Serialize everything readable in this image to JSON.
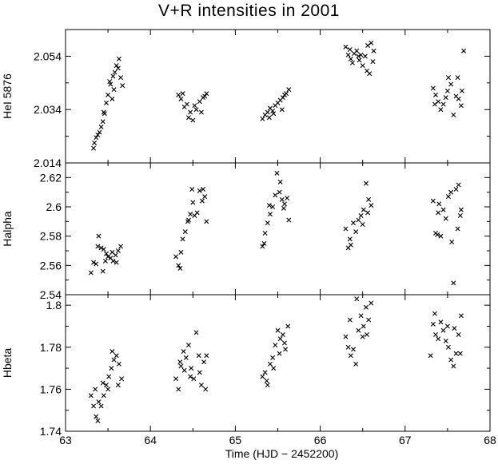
{
  "chart_data": {
    "type": "scatter",
    "title": "V+R intensities in 2001",
    "xlabel": "Time (HJD − 2452200)",
    "xlim": [
      63,
      68
    ],
    "xticks": [
      "63",
      "64",
      "65",
      "66",
      "67",
      "68"
    ],
    "marker": "x",
    "grid": false,
    "panels": [
      {
        "name": "HeI 5876",
        "ylabel": "HeI 5876",
        "ylim": [
          2.014,
          2.064
        ],
        "yticks": [
          "2.014",
          "2.034",
          "2.054"
        ],
        "points": [
          [
            63.33,
            2.0195
          ],
          [
            63.34,
            2.0215
          ],
          [
            63.36,
            2.0235
          ],
          [
            63.38,
            2.0245
          ],
          [
            63.4,
            2.0255
          ],
          [
            63.42,
            2.0275
          ],
          [
            63.44,
            2.0295
          ],
          [
            63.46,
            2.0325
          ],
          [
            63.48,
            2.0365
          ],
          [
            63.5,
            2.0395
          ],
          [
            63.53,
            2.0435
          ],
          [
            63.56,
            2.0465
          ],
          [
            63.58,
            2.048
          ],
          [
            63.62,
            2.0495
          ],
          [
            63.65,
            2.046
          ],
          [
            63.52,
            2.0445
          ],
          [
            63.57,
            2.0415
          ],
          [
            63.6,
            2.0505
          ],
          [
            63.63,
            2.053
          ],
          [
            63.67,
            2.043
          ],
          [
            63.55,
            2.038
          ],
          [
            63.45,
            2.033
          ],
          [
            64.33,
            2.0395
          ],
          [
            64.36,
            2.038
          ],
          [
            64.4,
            2.035
          ],
          [
            64.43,
            2.036
          ],
          [
            64.47,
            2.033
          ],
          [
            64.5,
            2.03
          ],
          [
            64.54,
            2.034
          ],
          [
            64.58,
            2.037
          ],
          [
            64.62,
            2.0385
          ],
          [
            64.66,
            2.04
          ],
          [
            64.38,
            2.04
          ],
          [
            64.45,
            2.031
          ],
          [
            64.52,
            2.0355
          ],
          [
            64.6,
            2.033
          ],
          [
            64.64,
            2.039
          ],
          [
            65.32,
            2.0305
          ],
          [
            65.35,
            2.032
          ],
          [
            65.38,
            2.033
          ],
          [
            65.41,
            2.0345
          ],
          [
            65.44,
            2.0335
          ],
          [
            65.47,
            2.0355
          ],
          [
            65.5,
            2.0365
          ],
          [
            65.53,
            2.0375
          ],
          [
            65.56,
            2.0385
          ],
          [
            65.6,
            2.04
          ],
          [
            65.63,
            2.0415
          ],
          [
            65.45,
            2.0325
          ],
          [
            65.55,
            2.034
          ],
          [
            65.4,
            2.031
          ],
          [
            65.58,
            2.0395
          ],
          [
            66.3,
            2.0575
          ],
          [
            66.33,
            2.0545
          ],
          [
            66.36,
            2.053
          ],
          [
            66.4,
            2.055
          ],
          [
            66.43,
            2.056
          ],
          [
            66.46,
            2.0525
          ],
          [
            66.5,
            2.0505
          ],
          [
            66.53,
            2.054
          ],
          [
            66.56,
            2.058
          ],
          [
            66.6,
            2.059
          ],
          [
            66.63,
            2.056
          ],
          [
            66.38,
            2.0515
          ],
          [
            66.48,
            2.0545
          ],
          [
            66.55,
            2.0485
          ],
          [
            66.58,
            2.0475
          ],
          [
            66.62,
            2.052
          ],
          [
            66.35,
            2.0565
          ],
          [
            66.45,
            2.054
          ],
          [
            67.33,
            2.042
          ],
          [
            67.36,
            2.0395
          ],
          [
            67.39,
            2.037
          ],
          [
            67.42,
            2.034
          ],
          [
            67.45,
            2.036
          ],
          [
            67.48,
            2.0385
          ],
          [
            67.51,
            2.046
          ],
          [
            67.54,
            2.0435
          ],
          [
            67.57,
            2.032
          ],
          [
            67.6,
            2.039
          ],
          [
            67.63,
            2.038
          ],
          [
            67.66,
            2.0355
          ],
          [
            67.69,
            2.056
          ],
          [
            67.35,
            2.036
          ],
          [
            67.5,
            2.041
          ],
          [
            67.62,
            2.046
          ],
          [
            67.67,
            2.041
          ]
        ]
      },
      {
        "name": "Halpha",
        "ylabel": "Halpha",
        "ylim": [
          2.54,
          2.63
        ],
        "yticks": [
          "2.54",
          "2.56",
          "2.58",
          "2.6",
          "2.62"
        ],
        "points": [
          [
            63.3,
            2.555
          ],
          [
            63.33,
            2.562
          ],
          [
            63.36,
            2.561
          ],
          [
            63.39,
            2.58
          ],
          [
            63.42,
            2.572
          ],
          [
            63.45,
            2.571
          ],
          [
            63.48,
            2.568
          ],
          [
            63.5,
            2.566
          ],
          [
            63.53,
            2.565
          ],
          [
            63.56,
            2.563
          ],
          [
            63.59,
            2.567
          ],
          [
            63.62,
            2.57
          ],
          [
            63.65,
            2.573
          ],
          [
            63.44,
            2.556
          ],
          [
            63.47,
            2.563
          ],
          [
            63.6,
            2.562
          ],
          [
            63.38,
            2.573
          ],
          [
            63.55,
            2.569
          ],
          [
            64.3,
            2.566
          ],
          [
            64.33,
            2.56
          ],
          [
            64.36,
            2.569
          ],
          [
            64.38,
            2.578
          ],
          [
            64.41,
            2.583
          ],
          [
            64.44,
            2.59
          ],
          [
            64.47,
            2.595
          ],
          [
            64.49,
            2.612
          ],
          [
            64.52,
            2.594
          ],
          [
            64.55,
            2.596
          ],
          [
            64.58,
            2.611
          ],
          [
            64.61,
            2.604
          ],
          [
            64.64,
            2.607
          ],
          [
            64.66,
            2.59
          ],
          [
            64.35,
            2.558
          ],
          [
            64.5,
            2.603
          ],
          [
            64.62,
            2.612
          ],
          [
            64.45,
            2.591
          ],
          [
            65.32,
            2.573
          ],
          [
            65.35,
            2.582
          ],
          [
            65.38,
            2.589
          ],
          [
            65.41,
            2.595
          ],
          [
            65.44,
            2.6
          ],
          [
            65.47,
            2.608
          ],
          [
            65.49,
            2.623
          ],
          [
            65.52,
            2.61
          ],
          [
            65.55,
            2.605
          ],
          [
            65.58,
            2.602
          ],
          [
            65.61,
            2.606
          ],
          [
            65.63,
            2.591
          ],
          [
            65.4,
            2.601
          ],
          [
            65.53,
            2.617
          ],
          [
            65.57,
            2.599
          ],
          [
            65.34,
            2.575
          ],
          [
            66.3,
            2.585
          ],
          [
            66.33,
            2.572
          ],
          [
            66.36,
            2.574
          ],
          [
            66.39,
            2.589
          ],
          [
            66.42,
            2.583
          ],
          [
            66.45,
            2.591
          ],
          [
            66.48,
            2.594
          ],
          [
            66.51,
            2.598
          ],
          [
            66.54,
            2.616
          ],
          [
            66.57,
            2.605
          ],
          [
            66.6,
            2.601
          ],
          [
            66.35,
            2.578
          ],
          [
            66.5,
            2.588
          ],
          [
            66.56,
            2.596
          ],
          [
            67.33,
            2.604
          ],
          [
            67.36,
            2.582
          ],
          [
            67.39,
            2.596
          ],
          [
            67.42,
            2.58
          ],
          [
            67.45,
            2.598
          ],
          [
            67.48,
            2.592
          ],
          [
            67.51,
            2.607
          ],
          [
            67.54,
            2.61
          ],
          [
            67.57,
            2.548
          ],
          [
            67.6,
            2.612
          ],
          [
            67.63,
            2.615
          ],
          [
            67.66,
            2.598
          ],
          [
            67.38,
            2.581
          ],
          [
            67.55,
            2.576
          ],
          [
            67.62,
            2.585
          ],
          [
            67.65,
            2.594
          ],
          [
            67.4,
            2.602
          ]
        ]
      },
      {
        "name": "Hbeta",
        "ylabel": "Hbeta",
        "ylim": [
          1.74,
          1.805
        ],
        "yticks": [
          "1.74",
          "1.76",
          "1.78",
          "1.8"
        ],
        "points": [
          [
            63.3,
            1.757
          ],
          [
            63.33,
            1.752
          ],
          [
            63.36,
            1.747
          ],
          [
            63.39,
            1.754
          ],
          [
            63.42,
            1.752
          ],
          [
            63.45,
            1.757
          ],
          [
            63.48,
            1.762
          ],
          [
            63.51,
            1.766
          ],
          [
            63.54,
            1.77
          ],
          [
            63.57,
            1.774
          ],
          [
            63.6,
            1.776
          ],
          [
            63.63,
            1.772
          ],
          [
            63.66,
            1.765
          ],
          [
            63.35,
            1.76
          ],
          [
            63.44,
            1.763
          ],
          [
            63.55,
            1.778
          ],
          [
            63.62,
            1.762
          ],
          [
            63.38,
            1.745
          ],
          [
            63.5,
            1.76
          ],
          [
            64.3,
            1.765
          ],
          [
            64.33,
            1.76
          ],
          [
            64.36,
            1.771
          ],
          [
            64.39,
            1.778
          ],
          [
            64.42,
            1.775
          ],
          [
            64.45,
            1.781
          ],
          [
            64.48,
            1.77
          ],
          [
            64.51,
            1.765
          ],
          [
            64.54,
            1.787
          ],
          [
            64.57,
            1.776
          ],
          [
            64.6,
            1.762
          ],
          [
            64.63,
            1.773
          ],
          [
            64.66,
            1.776
          ],
          [
            64.35,
            1.773
          ],
          [
            64.47,
            1.766
          ],
          [
            64.58,
            1.768
          ],
          [
            64.65,
            1.76
          ],
          [
            64.4,
            1.769
          ],
          [
            65.32,
            1.766
          ],
          [
            65.35,
            1.768
          ],
          [
            65.38,
            1.762
          ],
          [
            65.41,
            1.772
          ],
          [
            65.44,
            1.775
          ],
          [
            65.47,
            1.781
          ],
          [
            65.5,
            1.788
          ],
          [
            65.53,
            1.784
          ],
          [
            65.56,
            1.786
          ],
          [
            65.59,
            1.779
          ],
          [
            65.62,
            1.79
          ],
          [
            65.45,
            1.77
          ],
          [
            65.52,
            1.777
          ],
          [
            65.58,
            1.782
          ],
          [
            65.37,
            1.764
          ],
          [
            66.3,
            1.785
          ],
          [
            66.33,
            1.78
          ],
          [
            66.36,
            1.776
          ],
          [
            66.39,
            1.779
          ],
          [
            66.42,
            1.772
          ],
          [
            66.45,
            1.788
          ],
          [
            66.48,
            1.795
          ],
          [
            66.51,
            1.79
          ],
          [
            66.54,
            1.799
          ],
          [
            66.57,
            1.793
          ],
          [
            66.6,
            1.801
          ],
          [
            66.35,
            1.793
          ],
          [
            66.43,
            1.803
          ],
          [
            66.55,
            1.786
          ],
          [
            66.5,
            1.785
          ],
          [
            67.3,
            1.776
          ],
          [
            67.33,
            1.791
          ],
          [
            67.36,
            1.786
          ],
          [
            67.39,
            1.784
          ],
          [
            67.42,
            1.792
          ],
          [
            67.45,
            1.788
          ],
          [
            67.48,
            1.783
          ],
          [
            67.51,
            1.78
          ],
          [
            67.54,
            1.774
          ],
          [
            67.57,
            1.771
          ],
          [
            67.6,
            1.777
          ],
          [
            67.63,
            1.786
          ],
          [
            67.66,
            1.795
          ],
          [
            67.35,
            1.796
          ],
          [
            67.5,
            1.79
          ],
          [
            67.58,
            1.789
          ],
          [
            67.65,
            1.777
          ]
        ]
      }
    ]
  }
}
